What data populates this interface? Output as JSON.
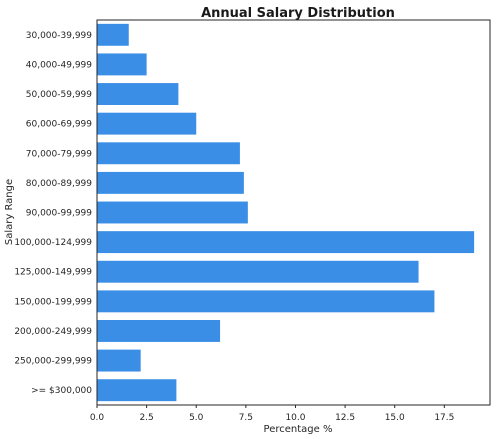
{
  "chart_data": {
    "type": "bar",
    "orientation": "horizontal",
    "title": "Annual Salary Distribution",
    "xlabel": "Percentage %",
    "ylabel": "Salary Range",
    "categories": [
      "30,000-39,999",
      "40,000-49,999",
      "50,000-59,999",
      "60,000-69,999",
      "70,000-79,999",
      "80,000-89,999",
      "90,000-99,999",
      "100,000-124,999",
      "125,000-149,999",
      "150,000-199,999",
      "200,000-249,999",
      "250,000-299,999",
      ">= $300,000"
    ],
    "values": [
      1.6,
      2.5,
      4.1,
      5.0,
      7.2,
      7.4,
      7.6,
      19.0,
      16.2,
      17.0,
      6.2,
      2.2,
      4.0
    ],
    "xlim": [
      0,
      19.8
    ],
    "xticks": [
      "0.0",
      "2.5",
      "5.0",
      "7.5",
      "10.0",
      "12.5",
      "15.0",
      "17.5"
    ],
    "grid": false,
    "colors": {
      "bar": "#3a8ee6",
      "frame": "#262626"
    }
  }
}
